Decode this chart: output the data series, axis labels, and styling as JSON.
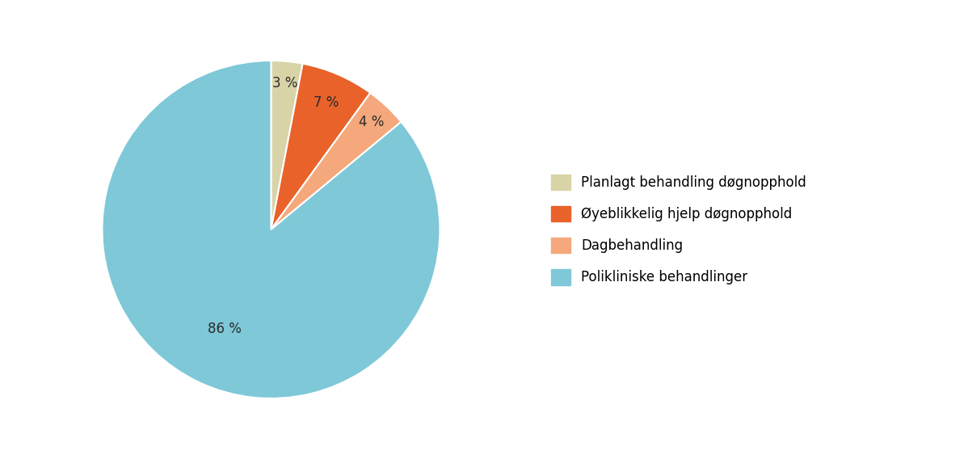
{
  "slices": [
    3,
    7,
    4,
    86
  ],
  "labels": [
    "Planlagt behandling døgnopphold",
    "Øyeblikkelig hjelp døgnopphold",
    "Dagbehandling",
    "Polikliniske behandlinger"
  ],
  "colors": [
    "#d9d3a8",
    "#e8622a",
    "#f4a87c",
    "#7ec8d8"
  ],
  "pct_labels": [
    "3 %",
    "7 %",
    "4 %",
    "86 %"
  ],
  "startangle": 90,
  "background_color": "#ffffff",
  "label_fontsize": 12,
  "legend_fontsize": 12,
  "pct_radii": [
    0.87,
    0.82,
    0.87,
    0.65
  ]
}
